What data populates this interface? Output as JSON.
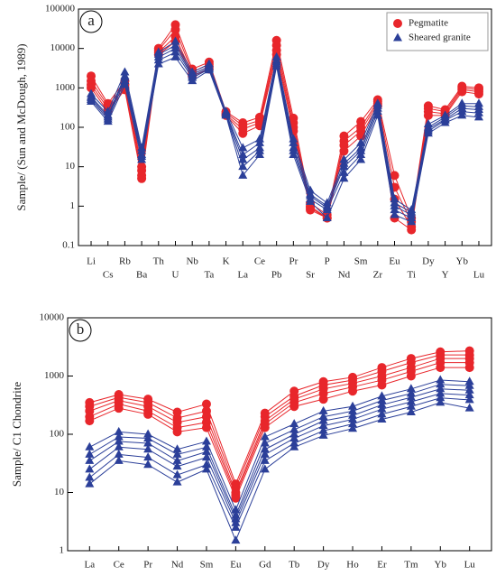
{
  "chart_data": [
    {
      "type": "line",
      "panel_label": "a",
      "y_label": "Sample/ (Sun and McDough, 1989)",
      "log_y": true,
      "legend": "upper right",
      "categories": [
        "Li",
        "Cs",
        "Rb",
        "Ba",
        "Th",
        "U",
        "Nb",
        "Ta",
        "K",
        "La",
        "Ce",
        "Pb",
        "Pr",
        "Sr",
        "P",
        "Nd",
        "Sm",
        "Zr",
        "Eu",
        "Ti",
        "Dy",
        "Y",
        "Yb",
        "Lu"
      ],
      "ylim": [
        0.1,
        100000
      ],
      "yticks": [
        0.1,
        1,
        10,
        100,
        1000,
        10000,
        100000
      ],
      "series": [
        {
          "name": "Pegmatite",
          "color": "#e8262b",
          "marker": "circle",
          "values": [
            [
              2000,
              400,
              1500,
              10,
              10000,
              40000,
              3000,
              4500,
              250,
              130,
              180,
              16000,
              170,
              1.2,
              0.6,
              60,
              140,
              500,
              6,
              0.5,
              350,
              280,
              1100,
              1000
            ],
            [
              1500,
              350,
              1200,
              8,
              9000,
              30000,
              2500,
              4000,
              230,
              110,
              150,
              12000,
              130,
              1,
              0.5,
              45,
              100,
              450,
              3,
              0.4,
              300,
              250,
              1000,
              900
            ],
            [
              1200,
              300,
              1000,
              6,
              8000,
              20000,
              2200,
              3500,
              210,
              90,
              130,
              9000,
              100,
              0.9,
              0.5,
              35,
              80,
              400,
              1.5,
              0.3,
              250,
              220,
              900,
              800
            ],
            [
              1000,
              250,
              900,
              5,
              7000,
              15000,
              2000,
              3000,
              200,
              70,
              110,
              7000,
              80,
              0.8,
              0.5,
              25,
              60,
              350,
              0.5,
              0.25,
              200,
              200,
              800,
              700
            ]
          ]
        },
        {
          "name": "Sheared granite",
          "color": "#2b3f99",
          "marker": "triangle",
          "values": [
            [
              700,
              250,
              2500,
              30,
              8000,
              15000,
              2500,
              4000,
              250,
              30,
              50,
              6000,
              50,
              2.5,
              1.2,
              15,
              40,
              400,
              1.5,
              0.8,
              120,
              200,
              400,
              400
            ],
            [
              600,
              200,
              2000,
              25,
              7000,
              12000,
              2200,
              3500,
              230,
              20,
              40,
              5000,
              40,
              2,
              1,
              12,
              30,
              350,
              1.2,
              0.7,
              100,
              180,
              350,
              330
            ],
            [
              550,
              180,
              1800,
              20,
              6000,
              10000,
              2000,
              3200,
              220,
              15,
              30,
              4500,
              30,
              1.8,
              0.9,
              10,
              25,
              300,
              1,
              0.6,
              90,
              160,
              300,
              280
            ],
            [
              500,
              160,
              1500,
              18,
              5000,
              8000,
              1800,
              3000,
              210,
              10,
              25,
              4000,
              25,
              1.5,
              0.8,
              7,
              20,
              250,
              0.8,
              0.5,
              80,
              150,
              250,
              230
            ],
            [
              450,
              140,
              1200,
              15,
              4000,
              6000,
              1500,
              2800,
              200,
              6,
              20,
              3500,
              20,
              1.3,
              0.5,
              5,
              15,
              200,
              0.6,
              0.4,
              70,
              130,
              200,
              180
            ]
          ]
        }
      ]
    },
    {
      "type": "line",
      "panel_label": "b",
      "y_label": "Sample/ C1 Chondrite",
      "log_y": true,
      "categories": [
        "La",
        "Ce",
        "Pr",
        "Nd",
        "Sm",
        "Eu",
        "Gd",
        "Tb",
        "Dy",
        "Ho",
        "Er",
        "Tm",
        "Yb",
        "Lu"
      ],
      "ylim": [
        1,
        10000
      ],
      "yticks": [
        1,
        10,
        100,
        1000,
        10000
      ],
      "series": [
        {
          "color": "#e8262b",
          "marker": "circle",
          "values": [
            [
              350,
              480,
              400,
              240,
              330,
              14,
              230,
              550,
              800,
              950,
              1400,
              2000,
              2600,
              2700
            ],
            [
              300,
              430,
              350,
              190,
              250,
              12,
              200,
              450,
              700,
              850,
              1200,
              1700,
              2300,
              2300
            ],
            [
              250,
              380,
              300,
              160,
              200,
              10,
              170,
              400,
              600,
              750,
              1000,
              1400,
              2000,
              2000
            ],
            [
              200,
              330,
              250,
              130,
              160,
              9,
              150,
              350,
              500,
              650,
              850,
              1200,
              1700,
              1700
            ],
            [
              170,
              280,
              220,
              110,
              130,
              8,
              130,
              300,
              400,
              550,
              700,
              1000,
              1400,
              1400
            ]
          ]
        },
        {
          "color": "#2b3f99",
          "marker": "triangle",
          "values": [
            [
              60,
              110,
              100,
              55,
              75,
              5,
              90,
              150,
              250,
              300,
              450,
              600,
              850,
              800
            ],
            [
              45,
              90,
              85,
              45,
              60,
              4,
              70,
              120,
              200,
              250,
              380,
              500,
              720,
              680
            ],
            [
              35,
              75,
              70,
              35,
              50,
              3.5,
              55,
              100,
              170,
              210,
              320,
              430,
              600,
              570
            ],
            [
              25,
              60,
              55,
              28,
              40,
              3,
              45,
              85,
              140,
              180,
              270,
              360,
              500,
              470
            ],
            [
              18,
              45,
              40,
              20,
              30,
              2.5,
              35,
              70,
              115,
              150,
              220,
              300,
              420,
              390
            ],
            [
              14,
              35,
              30,
              15,
              25,
              1.5,
              25,
              60,
              95,
              125,
              180,
              240,
              350,
              280
            ]
          ]
        }
      ]
    }
  ]
}
